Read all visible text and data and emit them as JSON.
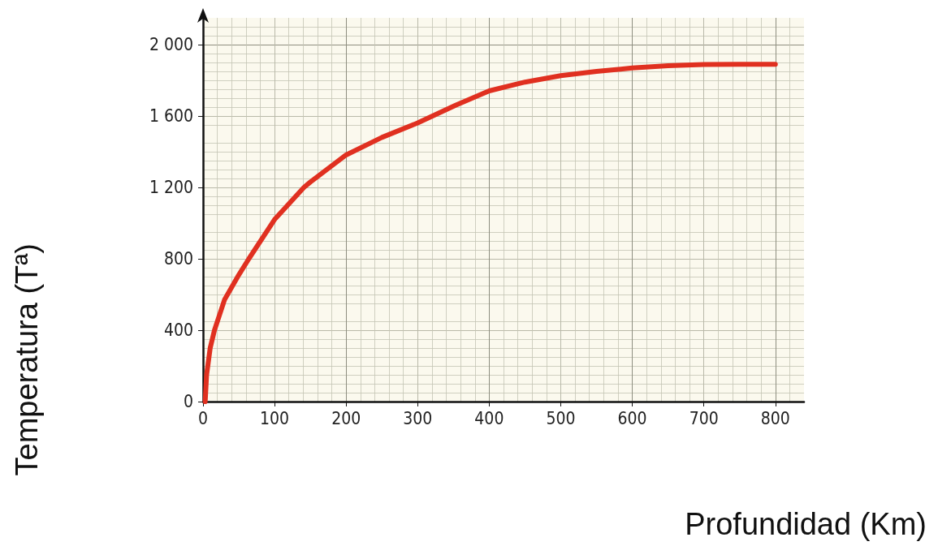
{
  "chart_data": {
    "type": "line",
    "xlabel": "Profundidad (Km)",
    "ylabel": "Temperatura (Tª)",
    "x": [
      3,
      5,
      10,
      16,
      30,
      50,
      64,
      100,
      141,
      150,
      200,
      250,
      300,
      353,
      400,
      450,
      500,
      550,
      600,
      650,
      700,
      750,
      800
    ],
    "series": [
      {
        "color": "#e03020",
        "values": [
          0,
          150,
          300,
          400,
          570,
          710,
          800,
          1020,
          1200,
          1230,
          1382,
          1480,
          1561,
          1660,
          1741,
          1790,
          1826,
          1850,
          1869,
          1882,
          1889,
          1890,
          1890
        ]
      }
    ],
    "xlim": [
      0,
      840
    ],
    "xticks": [
      0,
      100,
      200,
      300,
      400,
      500,
      600,
      700,
      800
    ],
    "ylim": [
      0,
      2150
    ],
    "yticks": [
      0,
      {
        "value": 400,
        "label": "400"
      },
      {
        "value": 800,
        "label": "800"
      },
      {
        "value": 1200,
        "label": "1 200"
      },
      {
        "value": 1600,
        "label": "1 600"
      },
      {
        "value": 2000,
        "label": "2 000"
      }
    ],
    "grid": true,
    "marker": "none",
    "line_style": "solid"
  }
}
